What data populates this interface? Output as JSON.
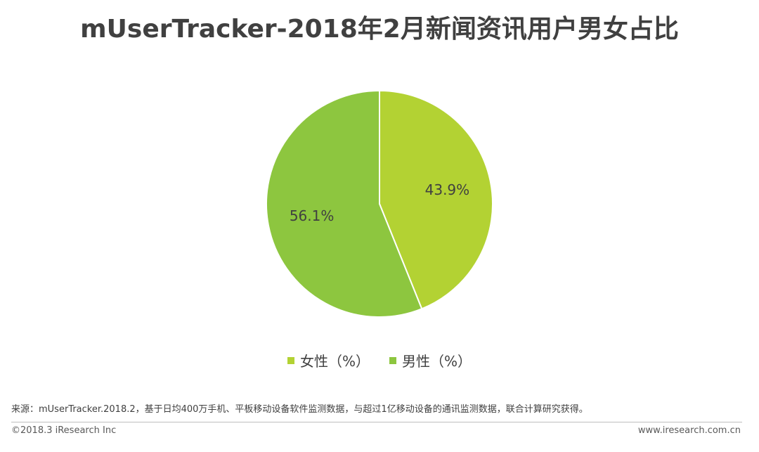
{
  "chart_data": {
    "type": "pie",
    "title": "mUserTracker-2018年2月新闻资讯用户男女占比",
    "categories": [
      "女性（%）",
      "男性（%）"
    ],
    "values": [
      43.9,
      56.1
    ],
    "data_labels": [
      "43.9%",
      "56.1%"
    ],
    "colors": [
      "#b3d233",
      "#8dc63f"
    ],
    "legend_position": "bottom"
  },
  "source": "来源：mUserTracker.2018.2，基于日均400万手机、平板移动设备软件监测数据，与超过1亿移动设备的通讯监测数据，联合计算研究获得。",
  "footer": {
    "copyright": "©2018.3 iResearch Inc",
    "website": "www.iresearch.com.cn"
  }
}
